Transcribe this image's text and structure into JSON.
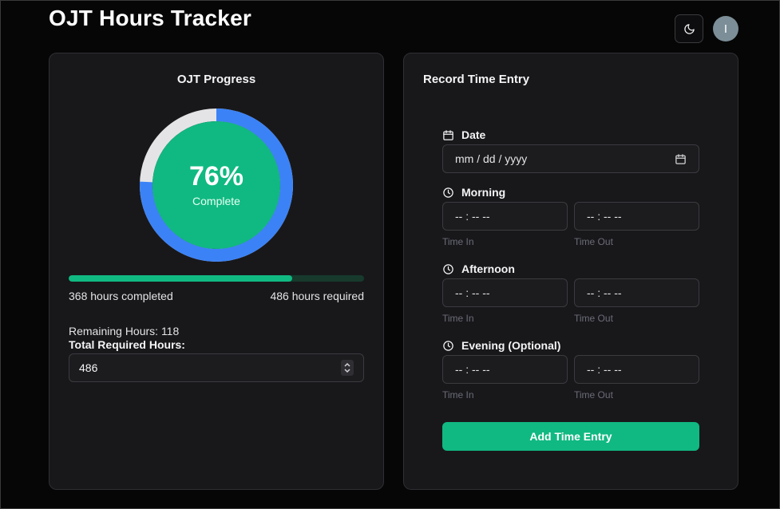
{
  "app": {
    "title": "OJT Hours Tracker"
  },
  "header": {
    "theme_icon": "moon-icon",
    "avatar_initial": "I"
  },
  "progress_card": {
    "title": "OJT Progress",
    "percent_text": "76%",
    "percent_label": "Complete",
    "completed_fraction": 0.757,
    "completed_text": "368 hours completed",
    "required_text": "486 hours required",
    "remaining_text": "Remaining Hours: 118",
    "total_label": "Total Required Hours:",
    "total_value": "486",
    "colors": {
      "ring": "#3b82f6",
      "ring_track": "#e4e4e7",
      "center": "#10b981",
      "bar": "#10b981",
      "bar_track": "#173a2d"
    }
  },
  "entry_card": {
    "title": "Record Time Entry",
    "date": {
      "label": "Date",
      "icon": "calendar-icon",
      "placeholder": "mm / dd / yyyy"
    },
    "sections": [
      {
        "label": "Morning",
        "icon": "clock-icon",
        "in_value": "-- : --  --",
        "out_value": "-- : --  --",
        "in_caption": "Time In",
        "out_caption": "Time Out"
      },
      {
        "label": "Afternoon",
        "icon": "clock-icon",
        "in_value": "-- : --  --",
        "out_value": "-- : --  --",
        "in_caption": "Time In",
        "out_caption": "Time Out"
      },
      {
        "label": "Evening (Optional)",
        "icon": "clock-icon",
        "in_value": "-- : --  --",
        "out_value": "-- : --  --",
        "in_caption": "Time In",
        "out_caption": "Time Out"
      }
    ],
    "submit_label": "Add Time Entry"
  }
}
